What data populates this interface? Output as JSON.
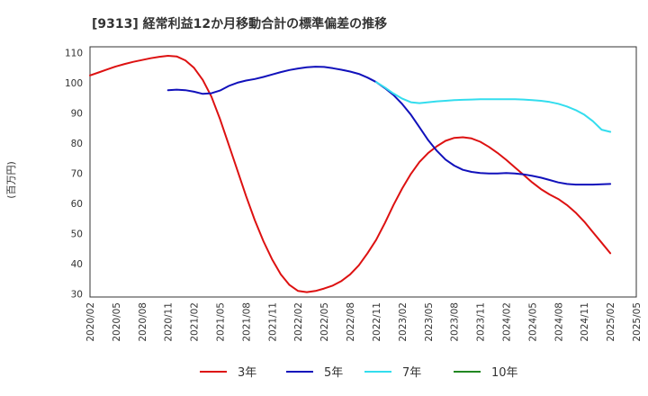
{
  "chart_data": {
    "type": "line",
    "title": "[9313]  経常利益12か月移動合計の標準偏差の推移",
    "xlabel": "",
    "ylabel": "(百万円)",
    "ylim": [
      29,
      112
    ],
    "y_ticks": [
      30,
      40,
      50,
      60,
      70,
      80,
      90,
      100,
      110
    ],
    "x_ticks": [
      "2020/02",
      "2020/05",
      "2020/08",
      "2020/11",
      "2021/02",
      "2021/05",
      "2021/08",
      "2021/11",
      "2022/02",
      "2022/05",
      "2022/08",
      "2022/11",
      "2023/02",
      "2023/05",
      "2023/08",
      "2023/11",
      "2024/02",
      "2024/05",
      "2024/08",
      "2024/11",
      "2025/02",
      "2025/05"
    ],
    "grid": true,
    "legend_position": "bottom",
    "series": [
      {
        "name": "3年",
        "color": "#dd1111",
        "points": [
          [
            "2020/02",
            102.5
          ],
          [
            "2020/03",
            103.5
          ],
          [
            "2020/04",
            104.5
          ],
          [
            "2020/05",
            105.5
          ],
          [
            "2020/06",
            106.3
          ],
          [
            "2020/07",
            107.0
          ],
          [
            "2020/08",
            107.6
          ],
          [
            "2020/09",
            108.2
          ],
          [
            "2020/10",
            108.7
          ],
          [
            "2020/11",
            109.0
          ],
          [
            "2020/12",
            108.8
          ],
          [
            "2021/01",
            107.5
          ],
          [
            "2021/02",
            105.0
          ],
          [
            "2021/03",
            101.0
          ],
          [
            "2021/04",
            95.5
          ],
          [
            "2021/05",
            88.0
          ],
          [
            "2021/06",
            79.5
          ],
          [
            "2021/07",
            71.0
          ],
          [
            "2021/08",
            62.5
          ],
          [
            "2021/09",
            54.5
          ],
          [
            "2021/10",
            47.5
          ],
          [
            "2021/11",
            41.5
          ],
          [
            "2021/12",
            36.5
          ],
          [
            "2022/01",
            33.0
          ],
          [
            "2022/02",
            31.0
          ],
          [
            "2022/03",
            30.6
          ],
          [
            "2022/04",
            31.0
          ],
          [
            "2022/05",
            31.8
          ],
          [
            "2022/06",
            32.8
          ],
          [
            "2022/07",
            34.3
          ],
          [
            "2022/08",
            36.5
          ],
          [
            "2022/09",
            39.5
          ],
          [
            "2022/10",
            43.5
          ],
          [
            "2022/11",
            48.0
          ],
          [
            "2022/12",
            53.5
          ],
          [
            "2023/01",
            59.5
          ],
          [
            "2023/02",
            65.0
          ],
          [
            "2023/03",
            69.8
          ],
          [
            "2023/04",
            73.8
          ],
          [
            "2023/05",
            76.8
          ],
          [
            "2023/06",
            79.0
          ],
          [
            "2023/07",
            80.8
          ],
          [
            "2023/08",
            81.8
          ],
          [
            "2023/09",
            82.0
          ],
          [
            "2023/10",
            81.6
          ],
          [
            "2023/11",
            80.5
          ],
          [
            "2023/12",
            78.8
          ],
          [
            "2024/01",
            76.8
          ],
          [
            "2024/02",
            74.5
          ],
          [
            "2024/03",
            72.0
          ],
          [
            "2024/04",
            69.5
          ],
          [
            "2024/05",
            67.0
          ],
          [
            "2024/06",
            64.8
          ],
          [
            "2024/07",
            63.0
          ],
          [
            "2024/08",
            61.5
          ],
          [
            "2024/09",
            59.5
          ],
          [
            "2024/10",
            57.0
          ],
          [
            "2024/11",
            54.0
          ],
          [
            "2024/12",
            50.5
          ],
          [
            "2025/01",
            47.0
          ],
          [
            "2025/02",
            43.5
          ]
        ]
      },
      {
        "name": "5年",
        "color": "#1111bb",
        "points": [
          [
            "2020/11",
            97.6
          ],
          [
            "2020/12",
            97.8
          ],
          [
            "2021/01",
            97.6
          ],
          [
            "2021/02",
            97.1
          ],
          [
            "2021/03",
            96.4
          ],
          [
            "2021/04",
            96.6
          ],
          [
            "2021/05",
            97.5
          ],
          [
            "2021/06",
            99.0
          ],
          [
            "2021/07",
            100.1
          ],
          [
            "2021/08",
            100.8
          ],
          [
            "2021/09",
            101.3
          ],
          [
            "2021/10",
            102.0
          ],
          [
            "2021/11",
            102.8
          ],
          [
            "2021/12",
            103.6
          ],
          [
            "2022/01",
            104.3
          ],
          [
            "2022/02",
            104.8
          ],
          [
            "2022/03",
            105.2
          ],
          [
            "2022/04",
            105.4
          ],
          [
            "2022/05",
            105.3
          ],
          [
            "2022/06",
            104.9
          ],
          [
            "2022/07",
            104.4
          ],
          [
            "2022/08",
            103.8
          ],
          [
            "2022/09",
            103.0
          ],
          [
            "2022/10",
            101.8
          ],
          [
            "2022/11",
            100.3
          ],
          [
            "2022/12",
            98.3
          ],
          [
            "2023/01",
            96.0
          ],
          [
            "2023/02",
            93.0
          ],
          [
            "2023/03",
            89.5
          ],
          [
            "2023/04",
            85.3
          ],
          [
            "2023/05",
            81.0
          ],
          [
            "2023/06",
            77.5
          ],
          [
            "2023/07",
            74.6
          ],
          [
            "2023/08",
            72.6
          ],
          [
            "2023/09",
            71.2
          ],
          [
            "2023/10",
            70.5
          ],
          [
            "2023/11",
            70.1
          ],
          [
            "2023/12",
            70.0
          ],
          [
            "2024/01",
            70.0
          ],
          [
            "2024/02",
            70.1
          ],
          [
            "2024/03",
            70.0
          ],
          [
            "2024/04",
            69.7
          ],
          [
            "2024/05",
            69.2
          ],
          [
            "2024/06",
            68.6
          ],
          [
            "2024/07",
            67.8
          ],
          [
            "2024/08",
            67.0
          ],
          [
            "2024/09",
            66.5
          ],
          [
            "2024/10",
            66.3
          ],
          [
            "2024/11",
            66.3
          ],
          [
            "2024/12",
            66.3
          ],
          [
            "2025/01",
            66.4
          ],
          [
            "2025/02",
            66.5
          ]
        ]
      },
      {
        "name": "7年",
        "color": "#33ddee",
        "points": [
          [
            "2022/11",
            100.3
          ],
          [
            "2022/12",
            98.5
          ],
          [
            "2023/01",
            96.5
          ],
          [
            "2023/02",
            94.8
          ],
          [
            "2023/03",
            93.6
          ],
          [
            "2023/04",
            93.3
          ],
          [
            "2023/05",
            93.6
          ],
          [
            "2023/06",
            93.9
          ],
          [
            "2023/07",
            94.1
          ],
          [
            "2023/08",
            94.3
          ],
          [
            "2023/09",
            94.4
          ],
          [
            "2023/10",
            94.5
          ],
          [
            "2023/11",
            94.6
          ],
          [
            "2023/12",
            94.6
          ],
          [
            "2024/01",
            94.6
          ],
          [
            "2024/02",
            94.6
          ],
          [
            "2024/03",
            94.6
          ],
          [
            "2024/04",
            94.5
          ],
          [
            "2024/05",
            94.3
          ],
          [
            "2024/06",
            94.1
          ],
          [
            "2024/07",
            93.7
          ],
          [
            "2024/08",
            93.1
          ],
          [
            "2024/09",
            92.2
          ],
          [
            "2024/10",
            91.0
          ],
          [
            "2024/11",
            89.5
          ],
          [
            "2024/12",
            87.3
          ],
          [
            "2025/01",
            84.5
          ],
          [
            "2025/02",
            83.8
          ]
        ]
      },
      {
        "name": "10年",
        "color": "#228822",
        "points": []
      }
    ]
  }
}
